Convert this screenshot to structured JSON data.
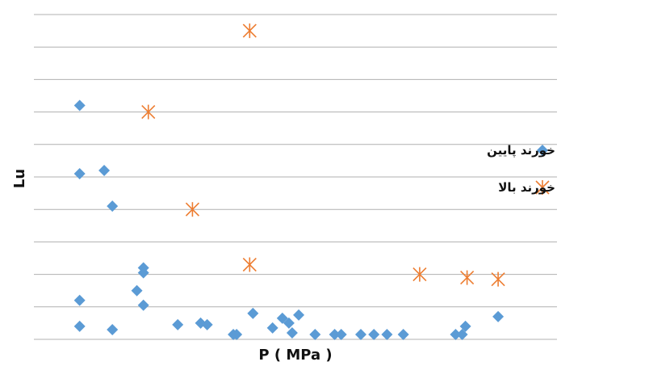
{
  "chart_data": {
    "type": "scatter",
    "title": "",
    "xlabel": "P ( MPa )",
    "ylabel": "Lu",
    "grid": "horizontal",
    "legend_position": "right",
    "ylim": [
      0,
      10
    ],
    "xlim": [
      0,
      16
    ],
    "series": [
      {
        "name": "خورند پایین",
        "marker": "diamond",
        "color": "#5b9bd5",
        "x": [
          1.4,
          2.15,
          1.4,
          2.4,
          1.4,
          1.4,
          2.4,
          3.15,
          3.35,
          3.35,
          3.35,
          4.4,
          5.1,
          5.3,
          6.1,
          6.2,
          6.7,
          7.3,
          7.6,
          7.8,
          7.9,
          8.1,
          8.6,
          9.2,
          9.4,
          10.0,
          10.4,
          10.8,
          11.3,
          12.9,
          13.1,
          13.2,
          14.2
        ],
        "y": [
          7.2,
          5.2,
          5.1,
          4.1,
          1.2,
          0.4,
          0.3,
          1.5,
          2.2,
          2.05,
          1.05,
          0.45,
          0.5,
          0.45,
          0.15,
          0.15,
          0.8,
          0.35,
          0.65,
          0.5,
          0.2,
          0.75,
          0.15,
          0.15,
          0.15,
          0.15,
          0.15,
          0.15,
          0.15,
          0.15,
          0.15,
          0.4,
          0.7
        ]
      },
      {
        "name": "خورند بالا",
        "marker": "asterisk",
        "color": "#ed7d31",
        "x": [
          3.5,
          4.85,
          6.6,
          6.6,
          11.8,
          13.25,
          14.2
        ],
        "y": [
          7.0,
          4.0,
          9.5,
          2.3,
          2.0,
          1.9,
          1.85
        ]
      }
    ]
  }
}
